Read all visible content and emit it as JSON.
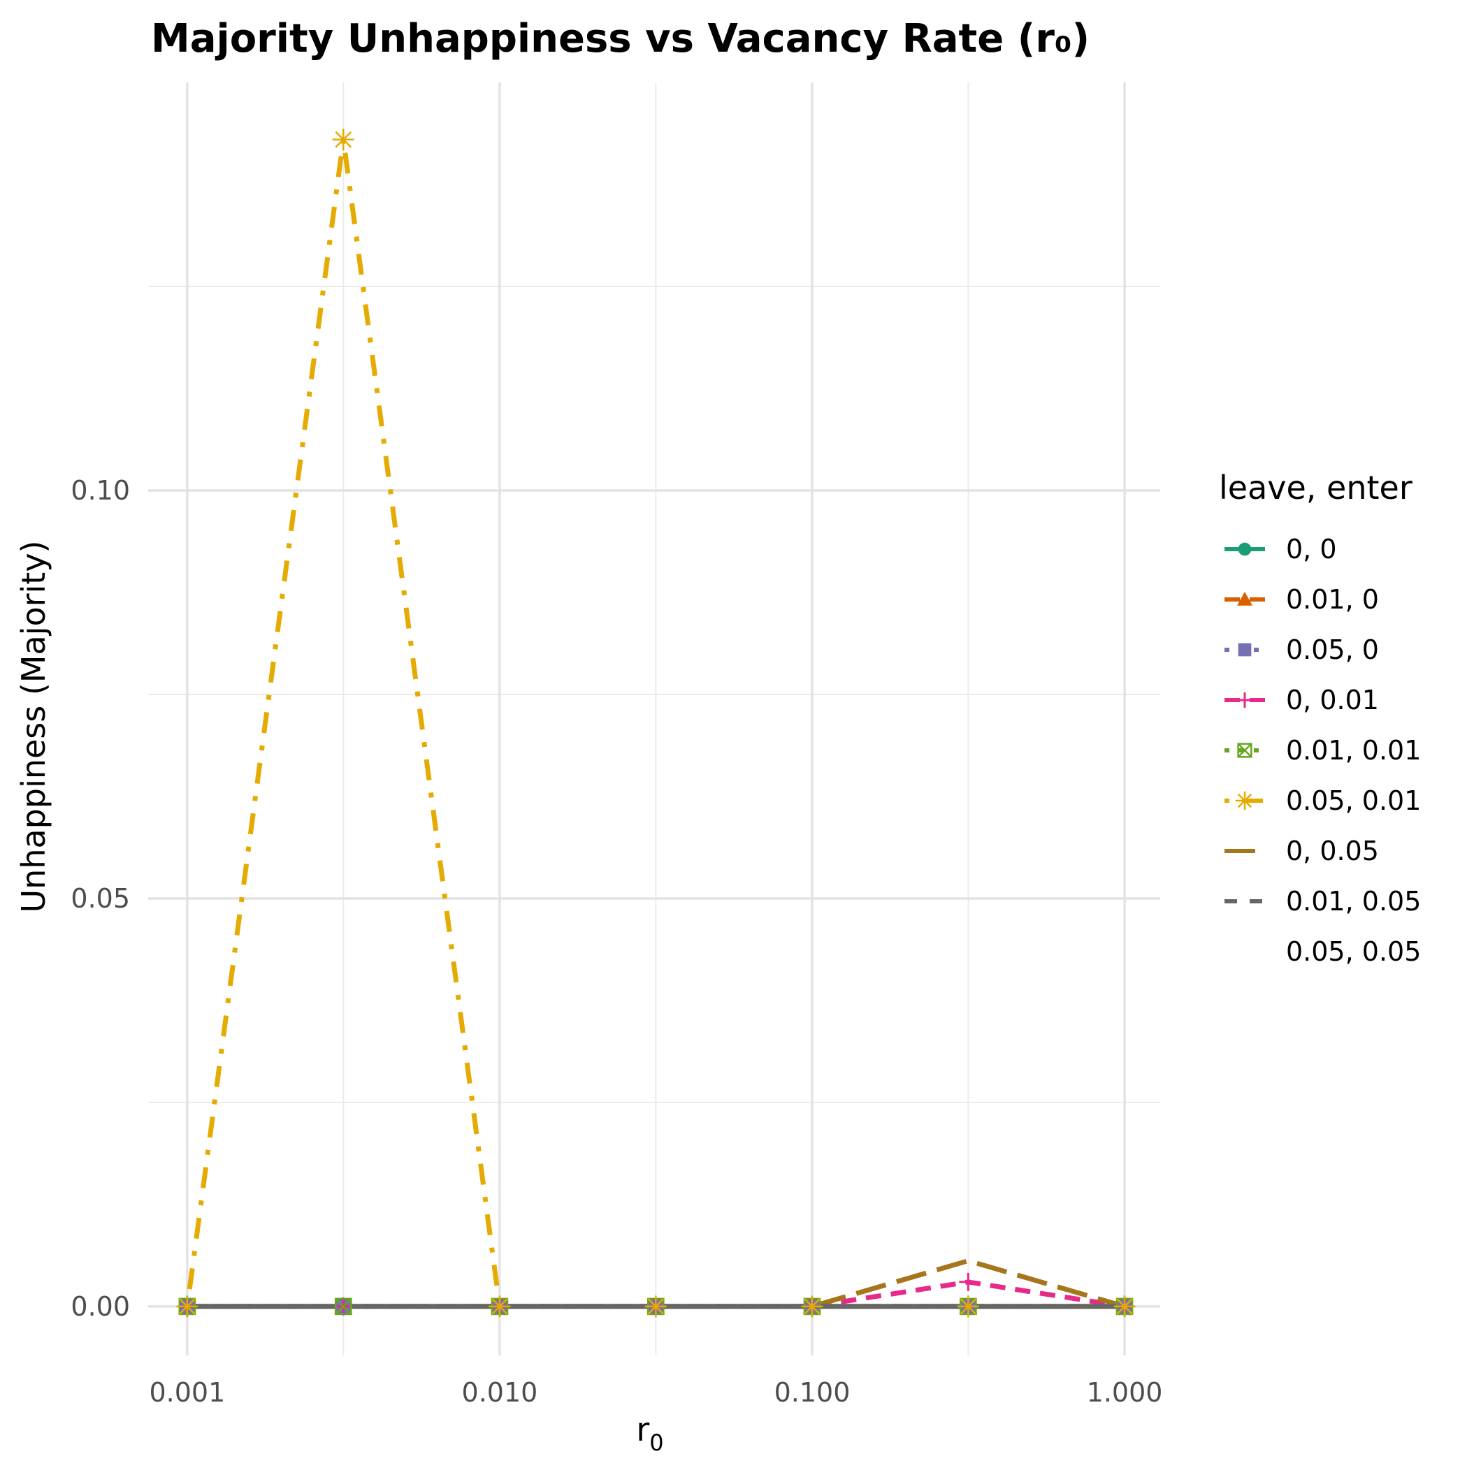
{
  "chart_data": {
    "type": "line",
    "title": "Majority Unhappiness vs Vacancy Rate (r₀)",
    "xlabel_base": "r",
    "xlabel_sub": "0",
    "ylabel": "Unhappiness (Majority)",
    "x_scale": "log",
    "x": [
      0.001,
      0.00316,
      0.01,
      0.0316,
      0.1,
      0.316,
      1.0
    ],
    "xlim": [
      0.00075,
      1.3
    ],
    "ylim": [
      -0.006,
      0.15
    ],
    "x_ticks": [
      0.001,
      0.01,
      0.1,
      1.0
    ],
    "x_tick_labels": [
      "0.001",
      "0.010",
      "0.100",
      "1.000"
    ],
    "x_minor": [
      0.00316,
      0.0316,
      0.316
    ],
    "y_ticks": [
      0.0,
      0.05,
      0.1
    ],
    "y_tick_labels": [
      "0.00",
      "0.05",
      "0.10"
    ],
    "y_minor": [
      0.025,
      0.075,
      0.125
    ],
    "grid": true,
    "legend": {
      "title": "leave, enter",
      "position": "right"
    },
    "series": [
      {
        "name": "0, 0",
        "color": "#1b9e77",
        "dash": "solid",
        "marker": "circle",
        "values": [
          0,
          0,
          0,
          0,
          0,
          0,
          0
        ]
      },
      {
        "name": "0.01, 0",
        "color": "#d95f02",
        "dash": "dashed",
        "marker": "triangle",
        "values": [
          0,
          0,
          0,
          0,
          0,
          0,
          0
        ]
      },
      {
        "name": "0.05, 0",
        "color": "#7570b3",
        "dash": "dotted",
        "marker": "square",
        "values": [
          0,
          0,
          0,
          0,
          0,
          0,
          0
        ]
      },
      {
        "name": "0, 0.01",
        "color": "#e7298a",
        "dash": "dashed",
        "marker": "plus",
        "values": [
          0,
          0,
          0,
          0,
          0,
          0.003,
          0
        ]
      },
      {
        "name": "0.01, 0.01",
        "color": "#66a61e",
        "dash": "dotted",
        "marker": "boxcross",
        "values": [
          0,
          0,
          0,
          0,
          0,
          0,
          0
        ]
      },
      {
        "name": "0.05, 0.01",
        "color": "#e6ab02",
        "dash": "dotdash",
        "marker": "asterisk",
        "values": [
          0,
          0.143,
          0,
          0,
          0,
          0,
          0
        ]
      },
      {
        "name": "0, 0.05",
        "color": "#a6761d",
        "dash": "longdash",
        "marker": "none",
        "values": [
          0,
          0,
          0,
          0,
          0,
          0.0056,
          0
        ]
      },
      {
        "name": "0.01, 0.05",
        "color": "#666666",
        "dash": "dashed-short",
        "marker": "none",
        "values": [
          0,
          0,
          0,
          0,
          0,
          0,
          0
        ]
      },
      {
        "name": "0.05, 0.05",
        "color": "#666666",
        "dash": "solid",
        "marker": "none",
        "legend_key": false,
        "values": [
          0,
          0,
          0,
          0,
          0,
          0,
          0
        ]
      }
    ]
  }
}
